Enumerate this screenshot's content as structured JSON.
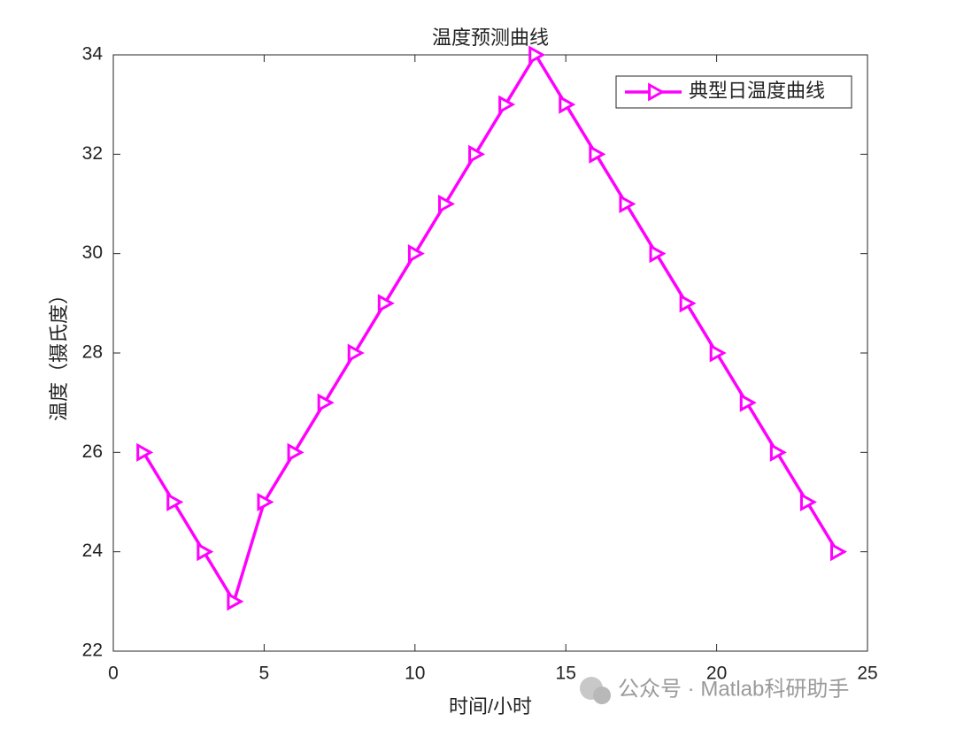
{
  "chart_data": {
    "type": "line",
    "title": "温度预测曲线",
    "x_label": "时间/小时",
    "y_label": "温度（摄氏度）",
    "x": [
      1,
      2,
      3,
      4,
      5,
      6,
      7,
      8,
      9,
      10,
      11,
      12,
      13,
      14,
      15,
      16,
      17,
      18,
      19,
      20,
      21,
      22,
      23,
      24
    ],
    "series": [
      {
        "name": "典型日温度曲线",
        "color": "#ff00ff",
        "values": [
          26,
          25,
          24,
          23,
          25,
          26,
          27,
          28,
          29,
          30,
          31,
          32,
          33,
          34,
          33,
          32,
          31,
          30,
          29,
          28,
          27,
          26,
          25,
          24
        ]
      }
    ],
    "xlim": [
      0,
      25
    ],
    "xticks": [
      0,
      5,
      10,
      15,
      20,
      25
    ],
    "ylim": [
      22,
      34
    ],
    "yticks": [
      22,
      24,
      26,
      28,
      30,
      32,
      34
    ],
    "grid": false,
    "legend": "northeast",
    "watermark": "公众号 · Matlab科研助手"
  }
}
